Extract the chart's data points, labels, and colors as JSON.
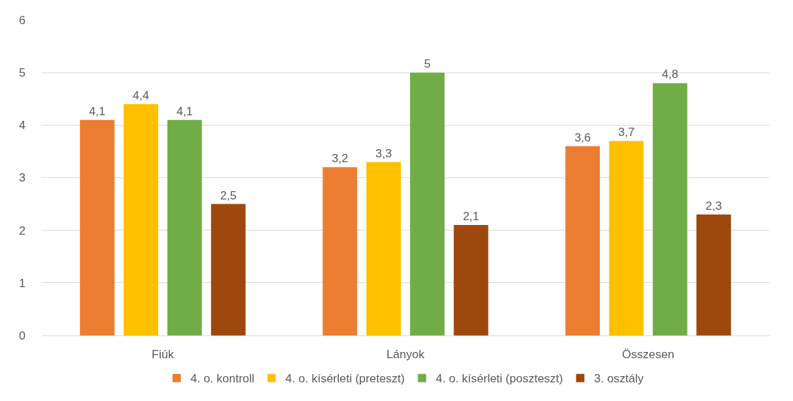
{
  "chart_data": {
    "type": "bar",
    "categories": [
      "Fiúk",
      "Lányok",
      "Összesen"
    ],
    "series": [
      {
        "name": "4. o. kontroll",
        "color": "#ed7d31",
        "values": [
          4.1,
          3.2,
          3.6
        ],
        "value_labels": [
          "4,1",
          "3,2",
          "3,6"
        ]
      },
      {
        "name": "4. o. kísérleti (preteszt)",
        "color": "#ffc000",
        "values": [
          4.4,
          3.3,
          3.7
        ],
        "value_labels": [
          "4,4",
          "3,3",
          "3,7"
        ]
      },
      {
        "name": "4. o. kísérleti (poszteszt)",
        "color": "#70ad47",
        "values": [
          4.1,
          5,
          4.8
        ],
        "value_labels": [
          "4,1",
          "5",
          "4,8"
        ]
      },
      {
        "name": "3. osztály",
        "color": "#9e480e",
        "values": [
          2.5,
          2.1,
          2.3
        ],
        "value_labels": [
          "2,5",
          "2,1",
          "2,3"
        ]
      }
    ],
    "ylim": [
      0,
      6
    ],
    "yticks": [
      0,
      1,
      2,
      3,
      4,
      5,
      6
    ],
    "grid": "y",
    "legend": "bottom"
  }
}
